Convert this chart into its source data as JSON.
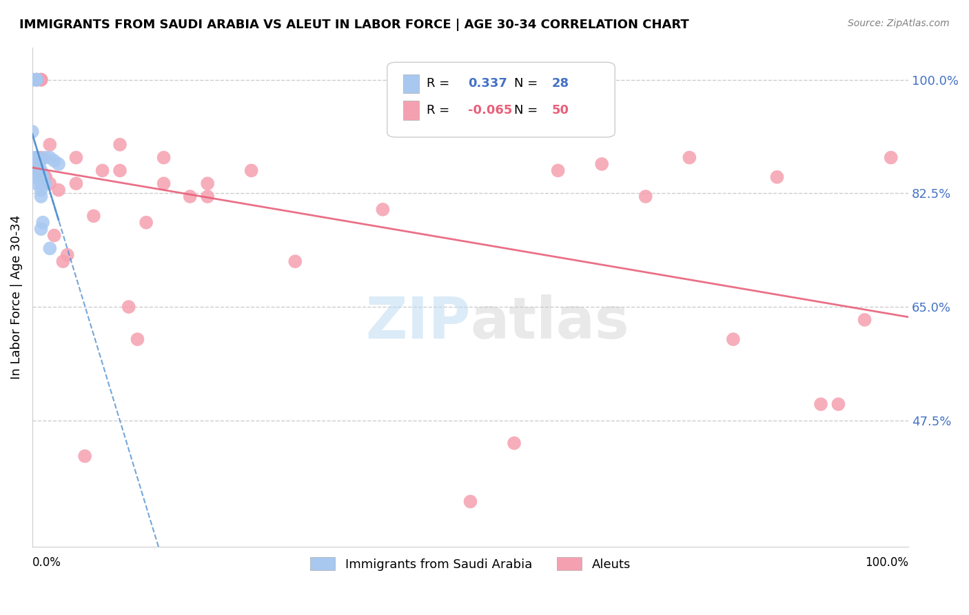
{
  "title": "IMMIGRANTS FROM SAUDI ARABIA VS ALEUT IN LABOR FORCE | AGE 30-34 CORRELATION CHART",
  "source": "Source: ZipAtlas.com",
  "ylabel": "In Labor Force | Age 30-34",
  "ytick_labels": [
    "100.0%",
    "82.5%",
    "65.0%",
    "47.5%"
  ],
  "ytick_values": [
    1.0,
    0.825,
    0.65,
    0.475
  ],
  "xmin": 0.0,
  "xmax": 1.0,
  "ymin": 0.28,
  "ymax": 1.05,
  "legend_blue_r": "0.337",
  "legend_blue_n": "28",
  "legend_pink_r": "-0.065",
  "legend_pink_n": "50",
  "blue_color": "#a8c8f0",
  "pink_color": "#f5a0b0",
  "blue_line_color": "#5090d0",
  "pink_line_color": "#e8607a",
  "watermark_zip": "ZIP",
  "watermark_atlas": "atlas",
  "blue_scatter_x": [
    0.0,
    0.0,
    0.0,
    0.0,
    0.0,
    0.005,
    0.005,
    0.005,
    0.005,
    0.005,
    0.005,
    0.005,
    0.008,
    0.008,
    0.01,
    0.01,
    0.01,
    0.01,
    0.01,
    0.01,
    0.012,
    0.012,
    0.015,
    0.015,
    0.02,
    0.02,
    0.025,
    0.03
  ],
  "blue_scatter_y": [
    1.0,
    1.0,
    1.0,
    0.92,
    0.88,
    1.0,
    1.0,
    0.88,
    0.87,
    0.86,
    0.85,
    0.84,
    0.87,
    0.85,
    0.86,
    0.85,
    0.84,
    0.83,
    0.82,
    0.77,
    0.85,
    0.78,
    0.88,
    0.84,
    0.88,
    0.74,
    0.875,
    0.87
  ],
  "pink_scatter_x": [
    0.0,
    0.0,
    0.0,
    0.005,
    0.005,
    0.005,
    0.005,
    0.005,
    0.01,
    0.01,
    0.01,
    0.01,
    0.015,
    0.015,
    0.02,
    0.02,
    0.025,
    0.03,
    0.035,
    0.04,
    0.05,
    0.05,
    0.06,
    0.07,
    0.08,
    0.1,
    0.1,
    0.11,
    0.12,
    0.13,
    0.15,
    0.15,
    0.18,
    0.2,
    0.2,
    0.25,
    0.3,
    0.4,
    0.5,
    0.55,
    0.6,
    0.65,
    0.7,
    0.75,
    0.8,
    0.85,
    0.9,
    0.92,
    0.95,
    0.98
  ],
  "pink_scatter_y": [
    1.0,
    1.0,
    1.0,
    1.0,
    1.0,
    1.0,
    0.88,
    0.86,
    1.0,
    1.0,
    1.0,
    0.88,
    0.85,
    0.85,
    0.9,
    0.84,
    0.76,
    0.83,
    0.72,
    0.73,
    0.88,
    0.84,
    0.42,
    0.79,
    0.86,
    0.9,
    0.86,
    0.65,
    0.6,
    0.78,
    0.88,
    0.84,
    0.82,
    0.84,
    0.82,
    0.86,
    0.72,
    0.8,
    0.35,
    0.44,
    0.86,
    0.87,
    0.82,
    0.88,
    0.6,
    0.85,
    0.5,
    0.5,
    0.63,
    0.88
  ]
}
